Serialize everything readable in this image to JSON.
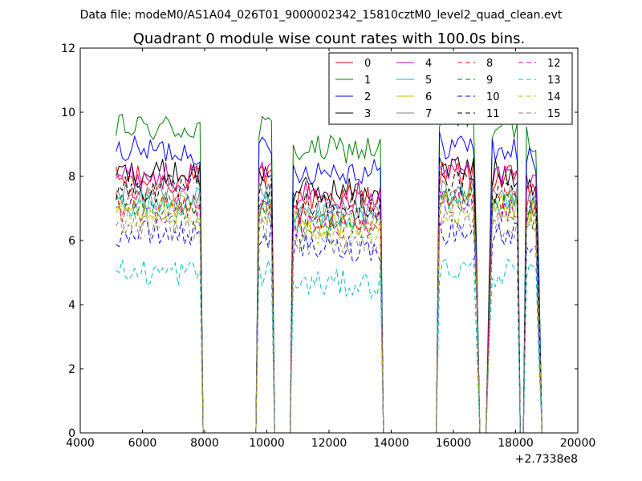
{
  "chart_data": {
    "type": "line",
    "suptitle": "Data file: modeM0/AS1A04_026T01_9000002342_15810cztM0_level2_quad_clean.evt",
    "title": "Quadrant 0 module wise count rates with 100.0s bins.",
    "xlabel": "",
    "ylabel": "",
    "x_offset_label": "+2.7338e8",
    "xlim": [
      4000,
      20000
    ],
    "ylim": [
      0,
      12
    ],
    "xticks": [
      4000,
      6000,
      8000,
      10000,
      12000,
      14000,
      16000,
      18000,
      20000
    ],
    "yticks": [
      0,
      2,
      4,
      6,
      8,
      10,
      12
    ],
    "legend_position": "top-right",
    "legend_columns": 4,
    "series_colors": [
      "#ff0000",
      "#008000",
      "#0000ff",
      "#000000",
      "#bf00bf",
      "#00bfbf",
      "#bfbf00",
      "#808080",
      "#ff0000",
      "#008000",
      "#0000ff",
      "#000000",
      "#bf00bf",
      "#00bfbf",
      "#bfbf00",
      "#808080"
    ],
    "series": [
      {
        "name": "0",
        "style": "solid",
        "level": 7.9
      },
      {
        "name": "1",
        "style": "solid",
        "level": 9.5
      },
      {
        "name": "2",
        "style": "solid",
        "level": 8.8
      },
      {
        "name": "3",
        "style": "solid",
        "level": 8.1
      },
      {
        "name": "4",
        "style": "solid",
        "level": 8.0
      },
      {
        "name": "5",
        "style": "solid",
        "level": 7.2
      },
      {
        "name": "6",
        "style": "solid",
        "level": 7.0
      },
      {
        "name": "7",
        "style": "solid",
        "level": 7.4
      },
      {
        "name": "8",
        "style": "dashed",
        "level": 7.2
      },
      {
        "name": "9",
        "style": "dashed",
        "level": 7.0
      },
      {
        "name": "10",
        "style": "dashed",
        "level": 6.2
      },
      {
        "name": "11",
        "style": "dashed",
        "level": 7.6
      },
      {
        "name": "12",
        "style": "dashed",
        "level": 7.0
      },
      {
        "name": "13",
        "style": "dashed",
        "level": 5.0
      },
      {
        "name": "14",
        "style": "dashed",
        "level": 6.7
      },
      {
        "name": "15",
        "style": "dashed",
        "level": 6.4
      }
    ],
    "segments": [
      {
        "start": 5150,
        "end": 7850,
        "scale": 1.0
      },
      {
        "start": 9750,
        "end": 10200,
        "scale": 1.0
      },
      {
        "start": 10850,
        "end": 13700,
        "scale": 0.93
      },
      {
        "start": 15550,
        "end": 16800,
        "scale": 1.02
      },
      {
        "start": 17100,
        "end": 18100,
        "scale": 1.0
      },
      {
        "start": 18300,
        "end": 18800,
        "scale": 0.97
      }
    ],
    "bin_width_s": 100
  }
}
